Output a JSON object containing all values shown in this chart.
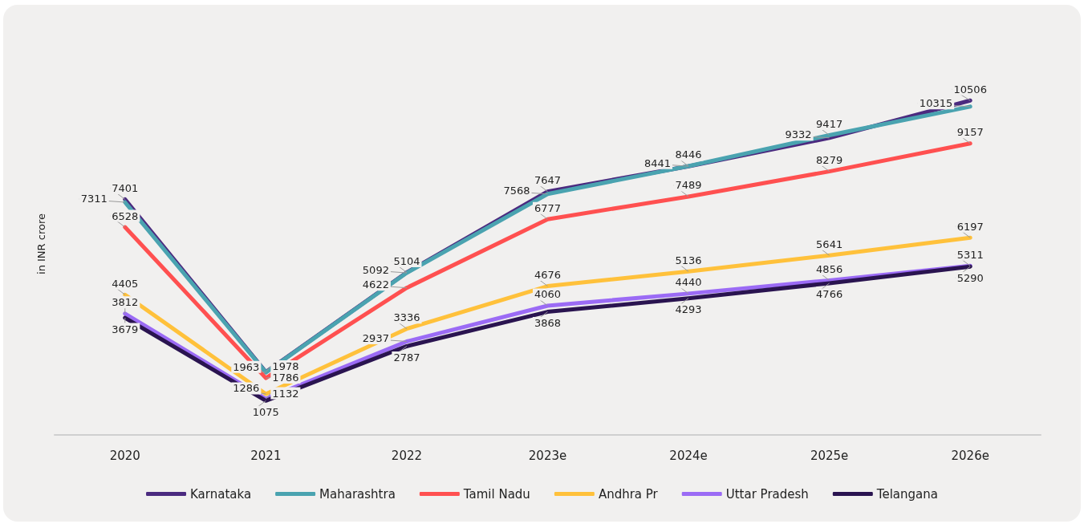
{
  "chart_data": {
    "type": "line",
    "ylabel": "in INR crore",
    "categories": [
      "2020",
      "2021",
      "2022",
      "2023e",
      "2024e",
      "2025e",
      "2026e"
    ],
    "series": [
      {
        "name": "Karnataka",
        "color": "#4b2a7f",
        "values": [
          7401,
          1978,
          5104,
          7647,
          8441,
          9332,
          10506
        ]
      },
      {
        "name": "Maharashtra",
        "color": "#4aa3b0",
        "values": [
          7311,
          1963,
          5092,
          7568,
          8446,
          9417,
          10315
        ]
      },
      {
        "name": "Tamil Nadu",
        "color": "#ff5050",
        "values": [
          6528,
          1786,
          4622,
          6777,
          7489,
          8279,
          9157
        ]
      },
      {
        "name": "Andhra Pr",
        "color": "#ffc13b",
        "values": [
          4405,
          1286,
          3336,
          4676,
          5136,
          5641,
          6197
        ]
      },
      {
        "name": "Uttar Pradesh",
        "color": "#9b6bf5",
        "values": [
          3812,
          1132,
          2937,
          4060,
          4440,
          4856,
          5311
        ]
      },
      {
        "name": "Telangana",
        "color": "#2a1450",
        "values": [
          3679,
          1075,
          2787,
          3868,
          4293,
          4766,
          5290
        ]
      }
    ],
    "data_labels": true,
    "legend": "bottom",
    "grid": false,
    "marker": "none",
    "line_style": "solid"
  }
}
